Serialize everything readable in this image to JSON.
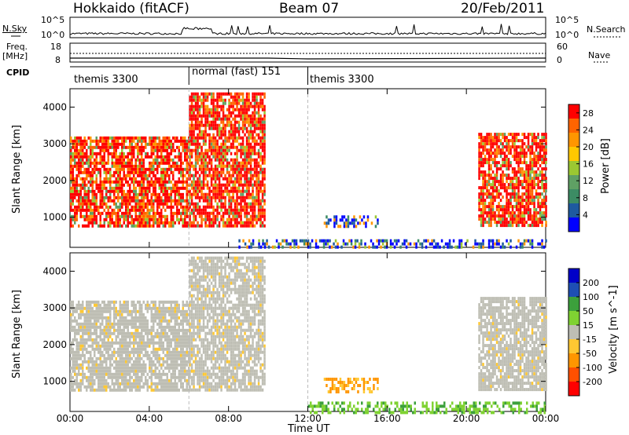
{
  "header": {
    "station": "Hokkaido (fitACF)",
    "beam": "Beam 07",
    "date": "20/Feb/2011"
  },
  "status_panel": {
    "n_sky_label": "N.Sky",
    "n_sky_ticks": [
      "10^5",
      "10^0"
    ],
    "n_search_label": "N.Search",
    "freq_label_top": "Freq.",
    "freq_label_unit": "[MHz]",
    "freq_ticks": [
      "18",
      "8"
    ],
    "nave_label": "Nave",
    "nave_ticks": [
      "60",
      "0"
    ],
    "cpid_label": "CPID",
    "cpid_segments": [
      {
        "label": "themis 3300",
        "start_hour": 0,
        "end_hour": 6
      },
      {
        "label": "normal (fast) 151",
        "start_hour": 6,
        "end_hour": 12
      },
      {
        "label": "themis 3300",
        "start_hour": 12,
        "end_hour": 24
      }
    ]
  },
  "colors": {
    "power_scale": [
      "#0000ff",
      "#1e5aa0",
      "#3c8c64",
      "#5fa064",
      "#9bc832",
      "#ffc800",
      "#ff9600",
      "#ff6400",
      "#ff0000"
    ],
    "velocity_scale": [
      "#0000c8",
      "#1e4fb4",
      "#3ca03c",
      "#7fd232",
      "#bebeb4",
      "#ffc832",
      "#ff9600",
      "#ff5000",
      "#ff0000"
    ],
    "ground_scatter": "#bebeb4"
  },
  "chart_data": [
    {
      "type": "heatmap",
      "panel": "power",
      "xlabel": "",
      "ylabel": "Slant Range [km]",
      "xlim_hours": [
        0,
        24
      ],
      "ylim": [
        180,
        4500
      ],
      "y_ticks": [
        "1000",
        "2000",
        "3000",
        "4000"
      ],
      "colorbar": {
        "label": "Power [dB]",
        "ticks": [
          "4",
          "8",
          "12",
          "16",
          "20",
          "24",
          "28"
        ],
        "range": [
          0,
          30
        ]
      },
      "echo_regions": [
        {
          "t_start": 0.0,
          "t_end": 6.0,
          "r_start": 800,
          "r_end": 3200,
          "level": "high"
        },
        {
          "t_start": 6.0,
          "t_end": 9.8,
          "r_start": 800,
          "r_end": 4400,
          "level": "high"
        },
        {
          "t_start": 12.8,
          "t_end": 15.5,
          "r_start": 750,
          "r_end": 1050,
          "level": "low"
        },
        {
          "t_start": 20.6,
          "t_end": 24.0,
          "r_start": 800,
          "r_end": 3300,
          "level": "high"
        },
        {
          "t_start": 8.5,
          "t_end": 24.0,
          "r_start": 180,
          "r_end": 400,
          "level": "low"
        }
      ]
    },
    {
      "type": "heatmap",
      "panel": "velocity",
      "xlabel": "Time UT",
      "ylabel": "Slant Range [km]",
      "xlim_hours": [
        0,
        24
      ],
      "ylim": [
        180,
        4500
      ],
      "x_ticks": [
        "00:00",
        "04:00",
        "08:00",
        "12:00",
        "16:00",
        "20:00",
        "00:00"
      ],
      "y_ticks": [
        "1000",
        "2000",
        "3000",
        "4000"
      ],
      "colorbar": {
        "label": "Velocity [m s^-1]",
        "ticks": [
          "200",
          "100",
          "50",
          "15",
          "-15",
          "-50",
          "-100",
          "-200"
        ],
        "range": [
          -250,
          250
        ]
      },
      "echo_regions": [
        {
          "t_start": 0.0,
          "t_end": 6.0,
          "r_start": 800,
          "r_end": 3200,
          "level": "ground"
        },
        {
          "t_start": 6.0,
          "t_end": 9.8,
          "r_start": 800,
          "r_end": 4400,
          "level": "ground"
        },
        {
          "t_start": 12.8,
          "t_end": 15.5,
          "r_start": 750,
          "r_end": 1100,
          "level": "negative"
        },
        {
          "t_start": 20.6,
          "t_end": 24.0,
          "r_start": 800,
          "r_end": 3300,
          "level": "ground"
        },
        {
          "t_start": 12.0,
          "t_end": 24.0,
          "r_start": 180,
          "r_end": 450,
          "level": "positive"
        }
      ]
    }
  ]
}
